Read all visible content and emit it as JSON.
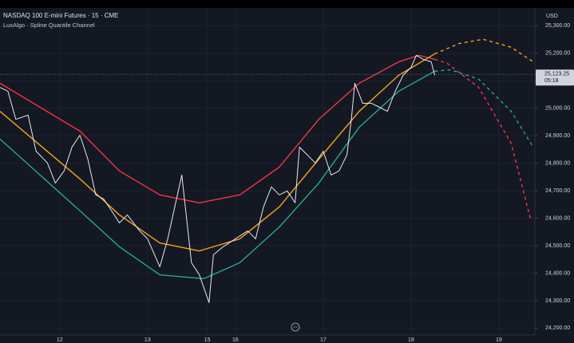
{
  "chart_data": {
    "type": "line",
    "title": "NASDAQ 100 E-mini Futures · 15 · CME",
    "subtitle": "LuxAlgo · Spline Quantile Channel",
    "y_axis_unit": "USD",
    "xlim": [
      -0.68,
      5.41
    ],
    "ylim": [
      24175,
      25365
    ],
    "xticks": [
      {
        "value": 0,
        "label": "12"
      },
      {
        "value": 1,
        "label": "13"
      },
      {
        "value": 1.68,
        "label": "15"
      },
      {
        "value": 2,
        "label": "16"
      },
      {
        "value": 3,
        "label": "17"
      },
      {
        "value": 4,
        "label": "18"
      },
      {
        "value": 5,
        "label": "19"
      }
    ],
    "yticks": [
      {
        "value": 24200,
        "label": "24,200.00"
      },
      {
        "value": 24300,
        "label": "24,300.00"
      },
      {
        "value": 24400,
        "label": "24,400.00"
      },
      {
        "value": 24500,
        "label": "24,500.00"
      },
      {
        "value": 24600,
        "label": "24,600.00"
      },
      {
        "value": 24700,
        "label": "24,700.00"
      },
      {
        "value": 24800,
        "label": "24,800.00"
      },
      {
        "value": 24900,
        "label": "24,900.00"
      },
      {
        "value": 25000,
        "label": "25,000.00"
      },
      {
        "value": 25100,
        "label": "25,100.00"
      },
      {
        "value": 25200,
        "label": "25,200.00"
      },
      {
        "value": 25300,
        "label": "25,300.00"
      }
    ],
    "grid": true,
    "last_price": 25123.25,
    "last_price_label": "25,123.25",
    "countdown": "05:18",
    "series": [
      {
        "color": "#f23645",
        "dashed": false,
        "x": [
          -0.68,
          0.23,
          0.68,
          1.14,
          1.59,
          2.05,
          2.5,
          2.95,
          3.41,
          3.86,
          4.09,
          4.27
        ],
        "values": [
          25091,
          24917,
          24772,
          24685,
          24656,
          24685,
          24786,
          24960,
          25091,
          25169,
          25193,
          25178
        ]
      },
      {
        "color": "#f7a21b",
        "dashed": false,
        "x": [
          -0.68,
          0.23,
          0.68,
          1.14,
          1.59,
          2.05,
          2.5,
          2.95,
          3.41,
          3.86,
          4.27
        ],
        "values": [
          24989,
          24743,
          24612,
          24510,
          24481,
          24525,
          24641,
          24815,
          24989,
          25120,
          25198
        ]
      },
      {
        "color": "#22ab94",
        "dashed": false,
        "x": [
          -0.68,
          0.23,
          0.68,
          1.14,
          1.64,
          2.05,
          2.5,
          2.95,
          3.41,
          3.86,
          4.27
        ],
        "values": [
          24888,
          24627,
          24496,
          24394,
          24380,
          24438,
          24568,
          24728,
          24931,
          25062,
          25135
        ]
      },
      {
        "color": "#f23645",
        "dashed": true,
        "x": [
          4.27,
          4.41,
          4.77,
          5.14,
          5.36
        ],
        "values": [
          25178,
          25164,
          25076,
          24873,
          24597
        ]
      },
      {
        "color": "#f7a21b",
        "dashed": true,
        "x": [
          4.27,
          4.55,
          4.82,
          5.14,
          5.39
        ],
        "values": [
          25198,
          25236,
          25251,
          25222,
          25169
        ]
      },
      {
        "color": "#22ab94",
        "dashed": true,
        "x": [
          4.27,
          4.45,
          4.77,
          5.14,
          5.39
        ],
        "values": [
          25135,
          25140,
          25106,
          24989,
          24859
        ]
      },
      {
        "color": "#e8e8e8",
        "dashed": false,
        "x": [
          -0.68,
          -0.59,
          -0.5,
          -0.36,
          -0.27,
          -0.14,
          -0.05,
          0.05,
          0.14,
          0.23,
          0.32,
          0.41,
          0.5,
          0.59,
          0.68,
          0.77,
          0.91,
          1.0,
          1.14,
          1.23,
          1.32,
          1.39,
          1.45,
          1.5,
          1.59,
          1.7,
          1.75,
          1.86,
          2.0,
          2.14,
          2.23,
          2.32,
          2.41,
          2.5,
          2.59,
          2.68,
          2.73,
          2.82,
          2.91,
          3.0,
          3.09,
          3.18,
          3.27,
          3.32,
          3.36,
          3.45,
          3.55,
          3.64,
          3.73,
          3.82,
          3.91,
          4.0,
          4.06,
          4.14,
          4.23,
          4.27
        ],
        "values": [
          25076,
          25062,
          24960,
          24975,
          24844,
          24801,
          24728,
          24772,
          24859,
          24902,
          24815,
          24685,
          24670,
          24627,
          24583,
          24612,
          24554,
          24525,
          24423,
          24525,
          24656,
          24757,
          24583,
          24438,
          24394,
          24293,
          24467,
          24496,
          24525,
          24554,
          24525,
          24641,
          24714,
          24685,
          24699,
          24656,
          24859,
          24830,
          24801,
          24844,
          24757,
          24772,
          24830,
          24960,
          25091,
          25018,
          25018,
          25004,
          24989,
          25062,
          25120,
          25149,
          25193,
          25178,
          25169,
          25120
        ]
      }
    ]
  }
}
